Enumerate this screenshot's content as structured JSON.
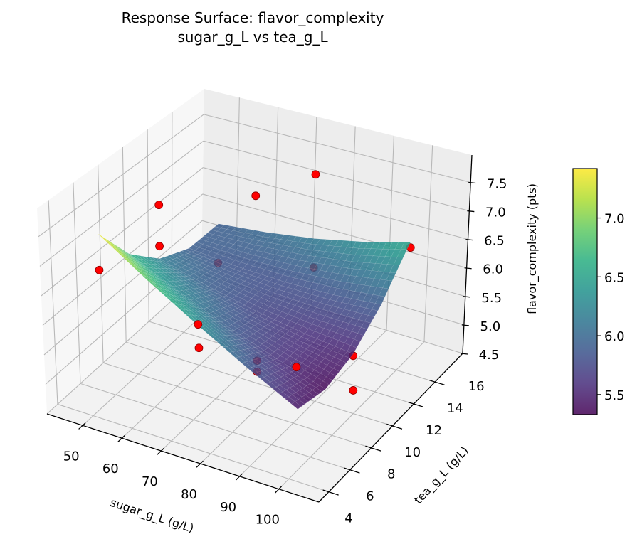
{
  "chart_data": {
    "type": "surface3d",
    "title": "Response Surface: flavor_complexity",
    "subtitle": "sugar_g_L vs tea_g_L",
    "x_axis": {
      "label": "sugar_g_L (g/L)",
      "range": [
        40.9,
        110.2
      ],
      "ticks": [
        50,
        60,
        70,
        80,
        90,
        100
      ],
      "tick_labels": [
        "50",
        "60",
        "70",
        "80",
        "90",
        "100"
      ]
    },
    "y_axis": {
      "label": "tea_g_L (g/L)",
      "range": [
        5.07,
        18.6
      ],
      "ticks": [
        4,
        6,
        8,
        10,
        12,
        14,
        16
      ],
      "tick_labels": [
        "4",
        "6",
        "8",
        "10",
        "12",
        "14",
        "16"
      ]
    },
    "z_axis": {
      "label": "flavor_complexity (pts)",
      "range": [
        4.5,
        7.98
      ],
      "ticks": [
        4.5,
        5.0,
        5.5,
        6.0,
        6.5,
        7.0,
        7.5
      ],
      "tick_labels": [
        "4.5",
        "5.0",
        "5.5",
        "6.0",
        "6.5",
        "7.0",
        "7.5"
      ]
    },
    "grid": true,
    "colormap": "viridis",
    "surface": {
      "sugar": [
        50,
        62.5,
        75,
        87.5,
        100
      ],
      "tea": [
        7,
        9.5,
        12,
        14.5,
        17
      ],
      "z_by_tea_row": [
        [
          7.42,
          6.85,
          6.34,
          5.87,
          5.45
        ],
        [
          6.67,
          6.27,
          5.91,
          5.61,
          5.35
        ],
        [
          6.17,
          5.93,
          5.74,
          5.6,
          5.5
        ],
        [
          5.92,
          5.84,
          5.81,
          5.83,
          5.9
        ],
        [
          5.92,
          6.01,
          6.14,
          6.32,
          6.55
        ]
      ],
      "opacity": 0.85
    },
    "scatter": {
      "color": "#ff0000",
      "edge_color": "#8b0000",
      "points": [
        {
          "sugar": 50,
          "tea": 7,
          "flavor": 6.8
        },
        {
          "sugar": 50,
          "tea": 17,
          "flavor": 5.2
        },
        {
          "sugar": 100,
          "tea": 17,
          "flavor": 6.45
        },
        {
          "sugar": 100,
          "tea": 7,
          "flavor": 6.13
        },
        {
          "sugar": 75,
          "tea": 12,
          "flavor": 7.73
        },
        {
          "sugar": 75,
          "tea": 12,
          "flavor": 4.89
        },
        {
          "sugar": 75,
          "tea": 12,
          "flavor": 4.7
        },
        {
          "sugar": 50,
          "tea": 12,
          "flavor": 7.12
        },
        {
          "sugar": 50,
          "tea": 12,
          "flavor": 6.39
        },
        {
          "sugar": 75,
          "tea": 7,
          "flavor": 6.36
        },
        {
          "sugar": 75,
          "tea": 7,
          "flavor": 5.97
        },
        {
          "sugar": 75,
          "tea": 17,
          "flavor": 7.29
        },
        {
          "sugar": 75,
          "tea": 17,
          "flavor": 5.62
        },
        {
          "sugar": 100,
          "tea": 12,
          "flavor": 5.47
        },
        {
          "sugar": 100,
          "tea": 12,
          "flavor": 4.89
        }
      ]
    },
    "colorbar": {
      "range": [
        5.33,
        7.42
      ],
      "ticks": [
        5.5,
        6.0,
        6.5,
        7.0
      ],
      "tick_labels": [
        "5.5",
        "6.0",
        "6.5",
        "7.0"
      ]
    }
  }
}
